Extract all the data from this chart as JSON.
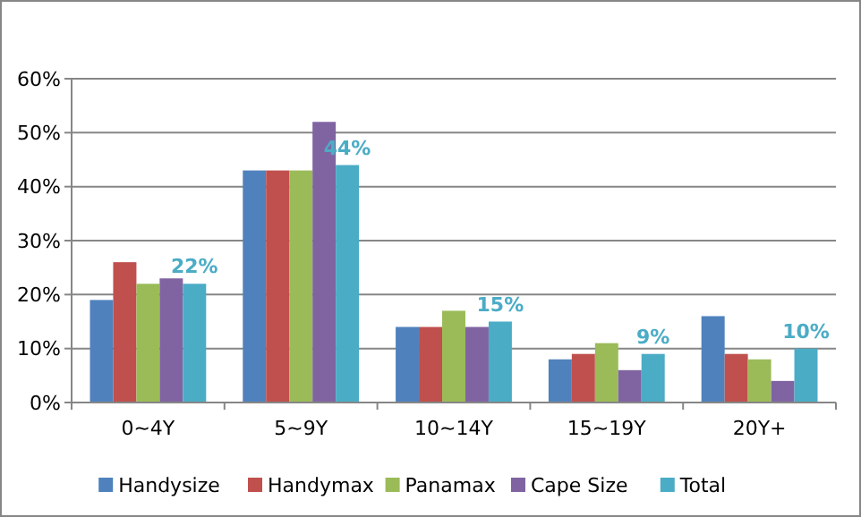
{
  "chart_data": {
    "type": "bar",
    "categories": [
      "0~4Y",
      "5~9Y",
      "10~14Y",
      "15~19Y",
      "20Y+"
    ],
    "series": [
      {
        "name": "Handysize",
        "color": "#4f81bd",
        "values": [
          19,
          43,
          14,
          8,
          16
        ]
      },
      {
        "name": "Handymax",
        "color": "#c0504d",
        "values": [
          26,
          43,
          14,
          9,
          9
        ]
      },
      {
        "name": "Panamax",
        "color": "#9bbb59",
        "values": [
          22,
          43,
          17,
          11,
          8
        ]
      },
      {
        "name": "Cape Size",
        "color": "#8064a2",
        "values": [
          23,
          52,
          14,
          6,
          4
        ]
      },
      {
        "name": "Total",
        "color": "#4bacc6",
        "values": [
          22,
          44,
          15,
          9,
          10
        ],
        "value_labels": [
          "22%",
          "44%",
          "15%",
          "9%",
          "10%"
        ]
      }
    ],
    "ylim": [
      0,
      60
    ],
    "yticks": [
      {
        "value": 0,
        "label": "0%"
      },
      {
        "value": 10,
        "label": "10%"
      },
      {
        "value": 20,
        "label": "20%"
      },
      {
        "value": 30,
        "label": "30%"
      },
      {
        "value": 40,
        "label": "40%"
      },
      {
        "value": 50,
        "label": "50%"
      },
      {
        "value": 60,
        "label": "60%"
      }
    ],
    "grid": "y",
    "legend": "bottom"
  }
}
